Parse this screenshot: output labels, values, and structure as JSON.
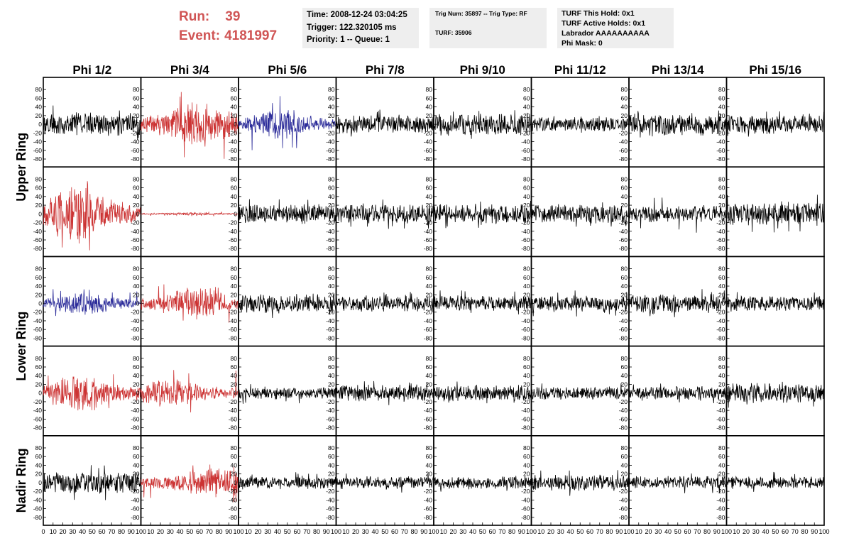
{
  "header": {
    "run_label": "Run:",
    "run_value": "39",
    "event_label": "Event:",
    "event_value": "4181997",
    "time_box": {
      "time": "Time: 2008-12-24 03:04:25",
      "trigger": "Trigger: 122.320105 ms",
      "priority": "Priority: 1 -- Queue: 1"
    },
    "trig_box": {
      "trig_line": "Trig Num: 35897 -- Trig Type: RF",
      "turf_line": "TURF: 35906"
    },
    "turf_box": {
      "this_hold": "TURF This Hold: 0x1",
      "active_holds": "TURF Active Holds: 0x1",
      "labrador": "Labrador AAAAAAAAAA",
      "phi_mask": "Phi Mask: 0"
    }
  },
  "colors": {
    "normal": "#000000",
    "red": "#cc3333",
    "blue": "#2b2b99",
    "frame": "#000000"
  },
  "chart_data": {
    "type": "line",
    "description_columns": [
      "Phi 1/2",
      "Phi 3/4",
      "Phi 5/6",
      "Phi 7/8",
      "Phi 9/10",
      "Phi 11/12",
      "Phi 13/14",
      "Phi 15/16"
    ],
    "ring_labels": [
      {
        "label": "Upper Ring",
        "rows": [
          0,
          1
        ]
      },
      {
        "label": "Lower Ring",
        "rows": [
          2,
          3
        ]
      },
      {
        "label": "Nadir Ring",
        "rows": [
          4
        ]
      }
    ],
    "xlim": [
      0,
      100
    ],
    "ylim": [
      -95,
      95
    ],
    "x_ticks": [
      0,
      10,
      20,
      30,
      40,
      50,
      60,
      70,
      80,
      90,
      100
    ],
    "y_ticks": [
      -80,
      -60,
      -40,
      -20,
      0,
      20,
      40,
      60,
      80
    ],
    "panels": [
      [
        {
          "style": "normal",
          "amplitude": 22,
          "peak": 45,
          "seed": 11
        },
        {
          "style": "red",
          "amplitude": 30,
          "peak": 90,
          "seed": 12
        },
        {
          "style": "blue",
          "amplitude": 20,
          "peak": 65,
          "seed": 13
        },
        {
          "style": "normal",
          "amplitude": 18,
          "peak": 35,
          "seed": 14
        },
        {
          "style": "normal",
          "amplitude": 20,
          "peak": 35,
          "seed": 15
        },
        {
          "style": "normal",
          "amplitude": 15,
          "peak": 25,
          "seed": 16
        },
        {
          "style": "normal",
          "amplitude": 20,
          "peak": 35,
          "seed": 17
        },
        {
          "style": "normal",
          "amplitude": 18,
          "peak": 30,
          "seed": 18
        }
      ],
      [
        {
          "style": "red",
          "amplitude": 38,
          "peak": 90,
          "seed": 21
        },
        {
          "style": "red",
          "amplitude": 2,
          "peak": 5,
          "seed": 22
        },
        {
          "style": "normal",
          "amplitude": 18,
          "peak": 35,
          "seed": 23
        },
        {
          "style": "normal",
          "amplitude": 18,
          "peak": 35,
          "seed": 24
        },
        {
          "style": "normal",
          "amplitude": 18,
          "peak": 35,
          "seed": 25
        },
        {
          "style": "normal",
          "amplitude": 18,
          "peak": 35,
          "seed": 26
        },
        {
          "style": "normal",
          "amplitude": 15,
          "peak": 45,
          "seed": 27
        },
        {
          "style": "normal",
          "amplitude": 22,
          "peak": 45,
          "seed": 28
        }
      ],
      [
        {
          "style": "blue",
          "amplitude": 15,
          "peak": 35,
          "seed": 31
        },
        {
          "style": "red",
          "amplitude": 22,
          "peak": 45,
          "seed": 32
        },
        {
          "style": "normal",
          "amplitude": 18,
          "peak": 35,
          "seed": 33
        },
        {
          "style": "normal",
          "amplitude": 15,
          "peak": 30,
          "seed": 34
        },
        {
          "style": "normal",
          "amplitude": 15,
          "peak": 30,
          "seed": 35
        },
        {
          "style": "normal",
          "amplitude": 15,
          "peak": 30,
          "seed": 36
        },
        {
          "style": "normal",
          "amplitude": 18,
          "peak": 35,
          "seed": 37
        },
        {
          "style": "normal",
          "amplitude": 15,
          "peak": 30,
          "seed": 38
        }
      ],
      [
        {
          "style": "red",
          "amplitude": 25,
          "peak": 45,
          "seed": 41
        },
        {
          "style": "red",
          "amplitude": 20,
          "peak": 60,
          "seed": 42
        },
        {
          "style": "normal",
          "amplitude": 12,
          "peak": 25,
          "seed": 43
        },
        {
          "style": "normal",
          "amplitude": 15,
          "peak": 30,
          "seed": 44
        },
        {
          "style": "normal",
          "amplitude": 15,
          "peak": 30,
          "seed": 45
        },
        {
          "style": "normal",
          "amplitude": 12,
          "peak": 25,
          "seed": 46
        },
        {
          "style": "normal",
          "amplitude": 12,
          "peak": 25,
          "seed": 47
        },
        {
          "style": "normal",
          "amplitude": 18,
          "peak": 35,
          "seed": 48
        }
      ],
      [
        {
          "style": "normal",
          "amplitude": 20,
          "peak": 45,
          "seed": 51
        },
        {
          "style": "red",
          "amplitude": 22,
          "peak": 45,
          "seed": 52
        },
        {
          "style": "normal",
          "amplitude": 12,
          "peak": 25,
          "seed": 53
        },
        {
          "style": "normal",
          "amplitude": 12,
          "peak": 25,
          "seed": 54
        },
        {
          "style": "normal",
          "amplitude": 12,
          "peak": 25,
          "seed": 55
        },
        {
          "style": "normal",
          "amplitude": 15,
          "peak": 35,
          "seed": 56
        },
        {
          "style": "normal",
          "amplitude": 12,
          "peak": 25,
          "seed": 57
        },
        {
          "style": "normal",
          "amplitude": 12,
          "peak": 25,
          "seed": 58
        }
      ]
    ]
  }
}
